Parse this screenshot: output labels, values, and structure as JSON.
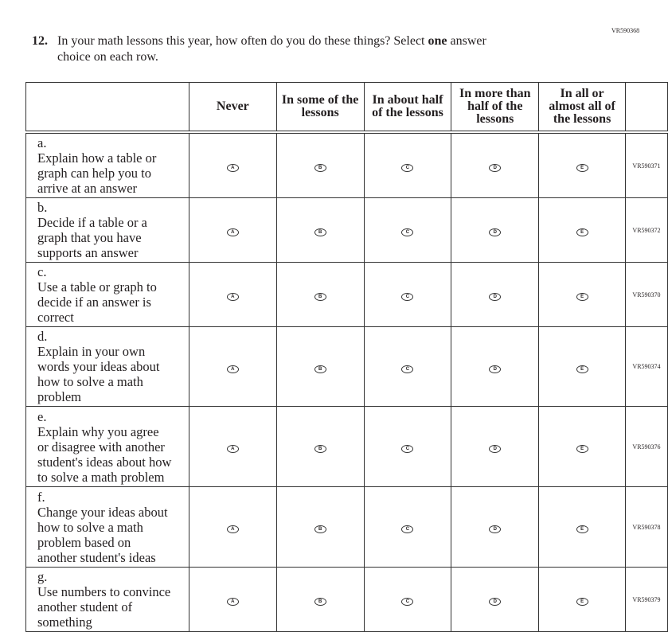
{
  "item_code": "VR590368",
  "question": {
    "number": "12.",
    "text_before": "In your math lessons this year, how often do you do these things? Select ",
    "emphasis": "one",
    "text_after": " answer",
    "line2": "choice on each row."
  },
  "columns": [
    "Never",
    "In some of the lessons",
    "In about half of the lessons",
    "In more than half of the lessons",
    "In all or almost all of the lessons"
  ],
  "options": [
    "A",
    "B",
    "C",
    "D",
    "E"
  ],
  "rows": [
    {
      "letter": "a.",
      "text": "Explain how a table or graph can help you to arrive at an answer",
      "code": "VR590371"
    },
    {
      "letter": "b.",
      "text": "Decide if a table or a graph that you have supports an answer",
      "code": "VR590372"
    },
    {
      "letter": "c.",
      "text": "Use a table or graph to decide if an answer is correct",
      "code": "VR590370"
    },
    {
      "letter": "d.",
      "text": "Explain in your own words your ideas about how to solve a math problem",
      "code": "VR590374"
    },
    {
      "letter": "e.",
      "text": "Explain why you agree or disagree with another student's ideas about how to solve a math problem",
      "code": "VR590376"
    },
    {
      "letter": "f.",
      "text": "Change your ideas about how to solve a math problem based on another student's ideas",
      "code": "VR590378"
    },
    {
      "letter": "g.",
      "text": "Use numbers to convince another student of something",
      "code": "VR590379"
    }
  ]
}
